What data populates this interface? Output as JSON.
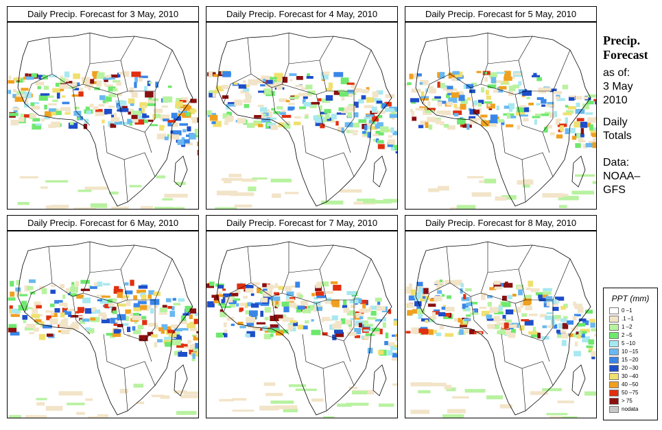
{
  "panels": [
    {
      "title": "Daily Precip. Forecast for  3 May, 2010"
    },
    {
      "title": "Daily Precip. Forecast for  4 May, 2010"
    },
    {
      "title": "Daily Precip. Forecast for  5 May, 2010"
    },
    {
      "title": "Daily Precip. Forecast for  6 May, 2010"
    },
    {
      "title": "Daily Precip. Forecast for  7 May, 2010"
    },
    {
      "title": "Daily Precip. Forecast for  8 May, 2010"
    }
  ],
  "sidebar": {
    "heading1": "Precip.",
    "heading2": "Forecast",
    "asof": "as of:",
    "date1": "3 May",
    "date2": "2010",
    "totals1": "Daily",
    "totals2": "Totals",
    "data1": "Data:",
    "data2": "NOAA–",
    "data3": "GFS"
  },
  "legend": {
    "title": "PPT (mm)",
    "items": [
      {
        "label": "0 –1",
        "color": "#ffffff"
      },
      {
        "label": ".1 –1",
        "color": "#f2e4c8"
      },
      {
        "label": "1 –2",
        "color": "#b8f2a0"
      },
      {
        "label": "2 –5",
        "color": "#6ee86e"
      },
      {
        "label": "5 –10",
        "color": "#a8e8f0"
      },
      {
        "label": "10 –15",
        "color": "#6ab8f0"
      },
      {
        "label": "15 –20",
        "color": "#3a86e8"
      },
      {
        "label": "20 –30",
        "color": "#1e4ec8"
      },
      {
        "label": "30 –40",
        "color": "#f0e070"
      },
      {
        "label": "40 –50",
        "color": "#f0a020"
      },
      {
        "label": "50 –75",
        "color": "#e03010"
      },
      {
        "label": "> 75",
        "color": "#8b1010"
      },
      {
        "label": "nodata",
        "color": "#c8c8c8"
      }
    ]
  }
}
